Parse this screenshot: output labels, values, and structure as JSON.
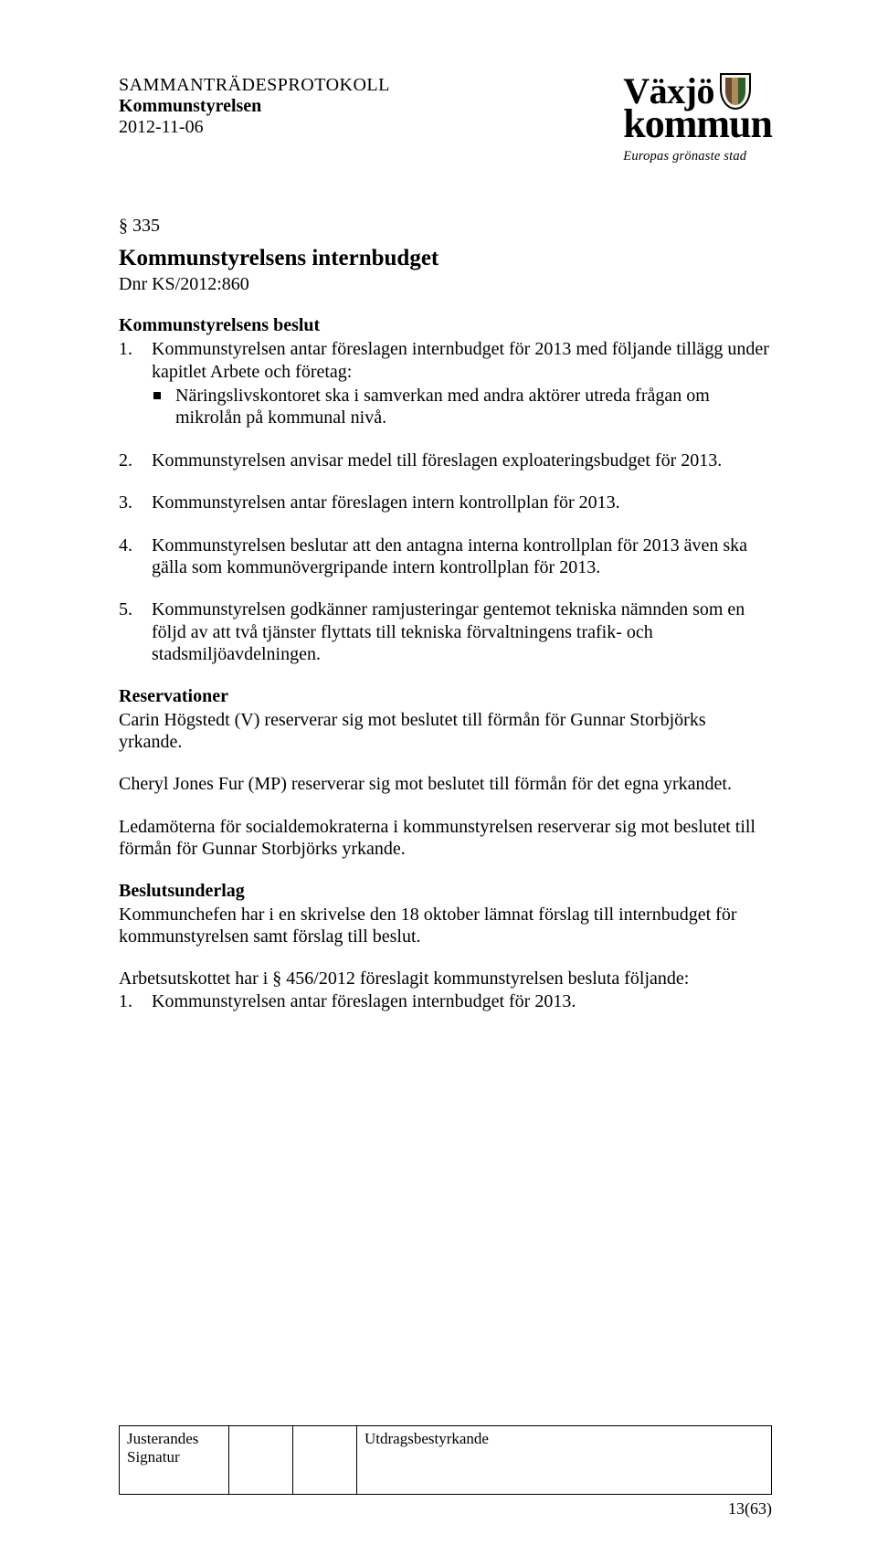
{
  "header": {
    "doc_type": "SAMMANTRÄDESPROTOKOLL",
    "committee": "Kommunstyrelsen",
    "date": "2012-11-06"
  },
  "logo": {
    "line1": "Växjö",
    "line2": "kommun",
    "tagline": "Europas grönaste stad"
  },
  "section": {
    "number": "§ 335",
    "title": "Kommunstyrelsens internbudget",
    "dnr": "Dnr KS/2012:860"
  },
  "beslut_heading": "Kommunstyrelsens beslut",
  "items": {
    "i1": {
      "num": "1.",
      "text": "Kommunstyrelsen antar föreslagen internbudget för 2013 med följande tillägg under kapitlet Arbete och företag:",
      "bullet": "Näringslivskontoret ska i samverkan med andra aktörer utreda frågan om mikrolån på kommunal nivå."
    },
    "i2": {
      "num": "2.",
      "text": "Kommunstyrelsen anvisar medel till föreslagen exploateringsbudget för 2013."
    },
    "i3": {
      "num": "3.",
      "text": "Kommunstyrelsen antar föreslagen intern kontrollplan för 2013."
    },
    "i4": {
      "num": "4.",
      "text": "Kommunstyrelsen beslutar att den antagna interna kontrollplan för 2013 även ska gälla som kommunövergripande intern kontrollplan för 2013."
    },
    "i5": {
      "num": "5.",
      "text": "Kommunstyrelsen godkänner ramjusteringar gentemot tekniska nämnden som en följd av att två tjänster flyttats till tekniska förvaltningens trafik- och stadsmiljöavdelningen."
    }
  },
  "reservations": {
    "heading": "Reservationer",
    "p1": "Carin Högstedt (V) reserverar sig mot beslutet till förmån för Gunnar Storbjörks yrkande.",
    "p2": "Cheryl Jones Fur (MP) reserverar sig mot beslutet till förmån för det egna yrkandet.",
    "p3": "Ledamöterna för socialdemokraterna i kommunstyrelsen reserverar sig mot beslutet till förmån för Gunnar Storbjörks yrkande."
  },
  "underlag": {
    "heading": "Beslutsunderlag",
    "p1": "Kommunchefen har i en skrivelse den 18 oktober lämnat förslag till internbudget för kommunstyrelsen samt förslag till beslut.",
    "p2": "Arbetsutskottet har i § 456/2012 föreslagit kommunstyrelsen besluta följande:",
    "bullet_num": "1.",
    "bullet_text": "Kommunstyrelsen antar föreslagen internbudget för 2013."
  },
  "footer": {
    "just_label": "Justerandes Signatur",
    "auth_label": "Utdragsbestyrkande",
    "page": "13(63)"
  }
}
